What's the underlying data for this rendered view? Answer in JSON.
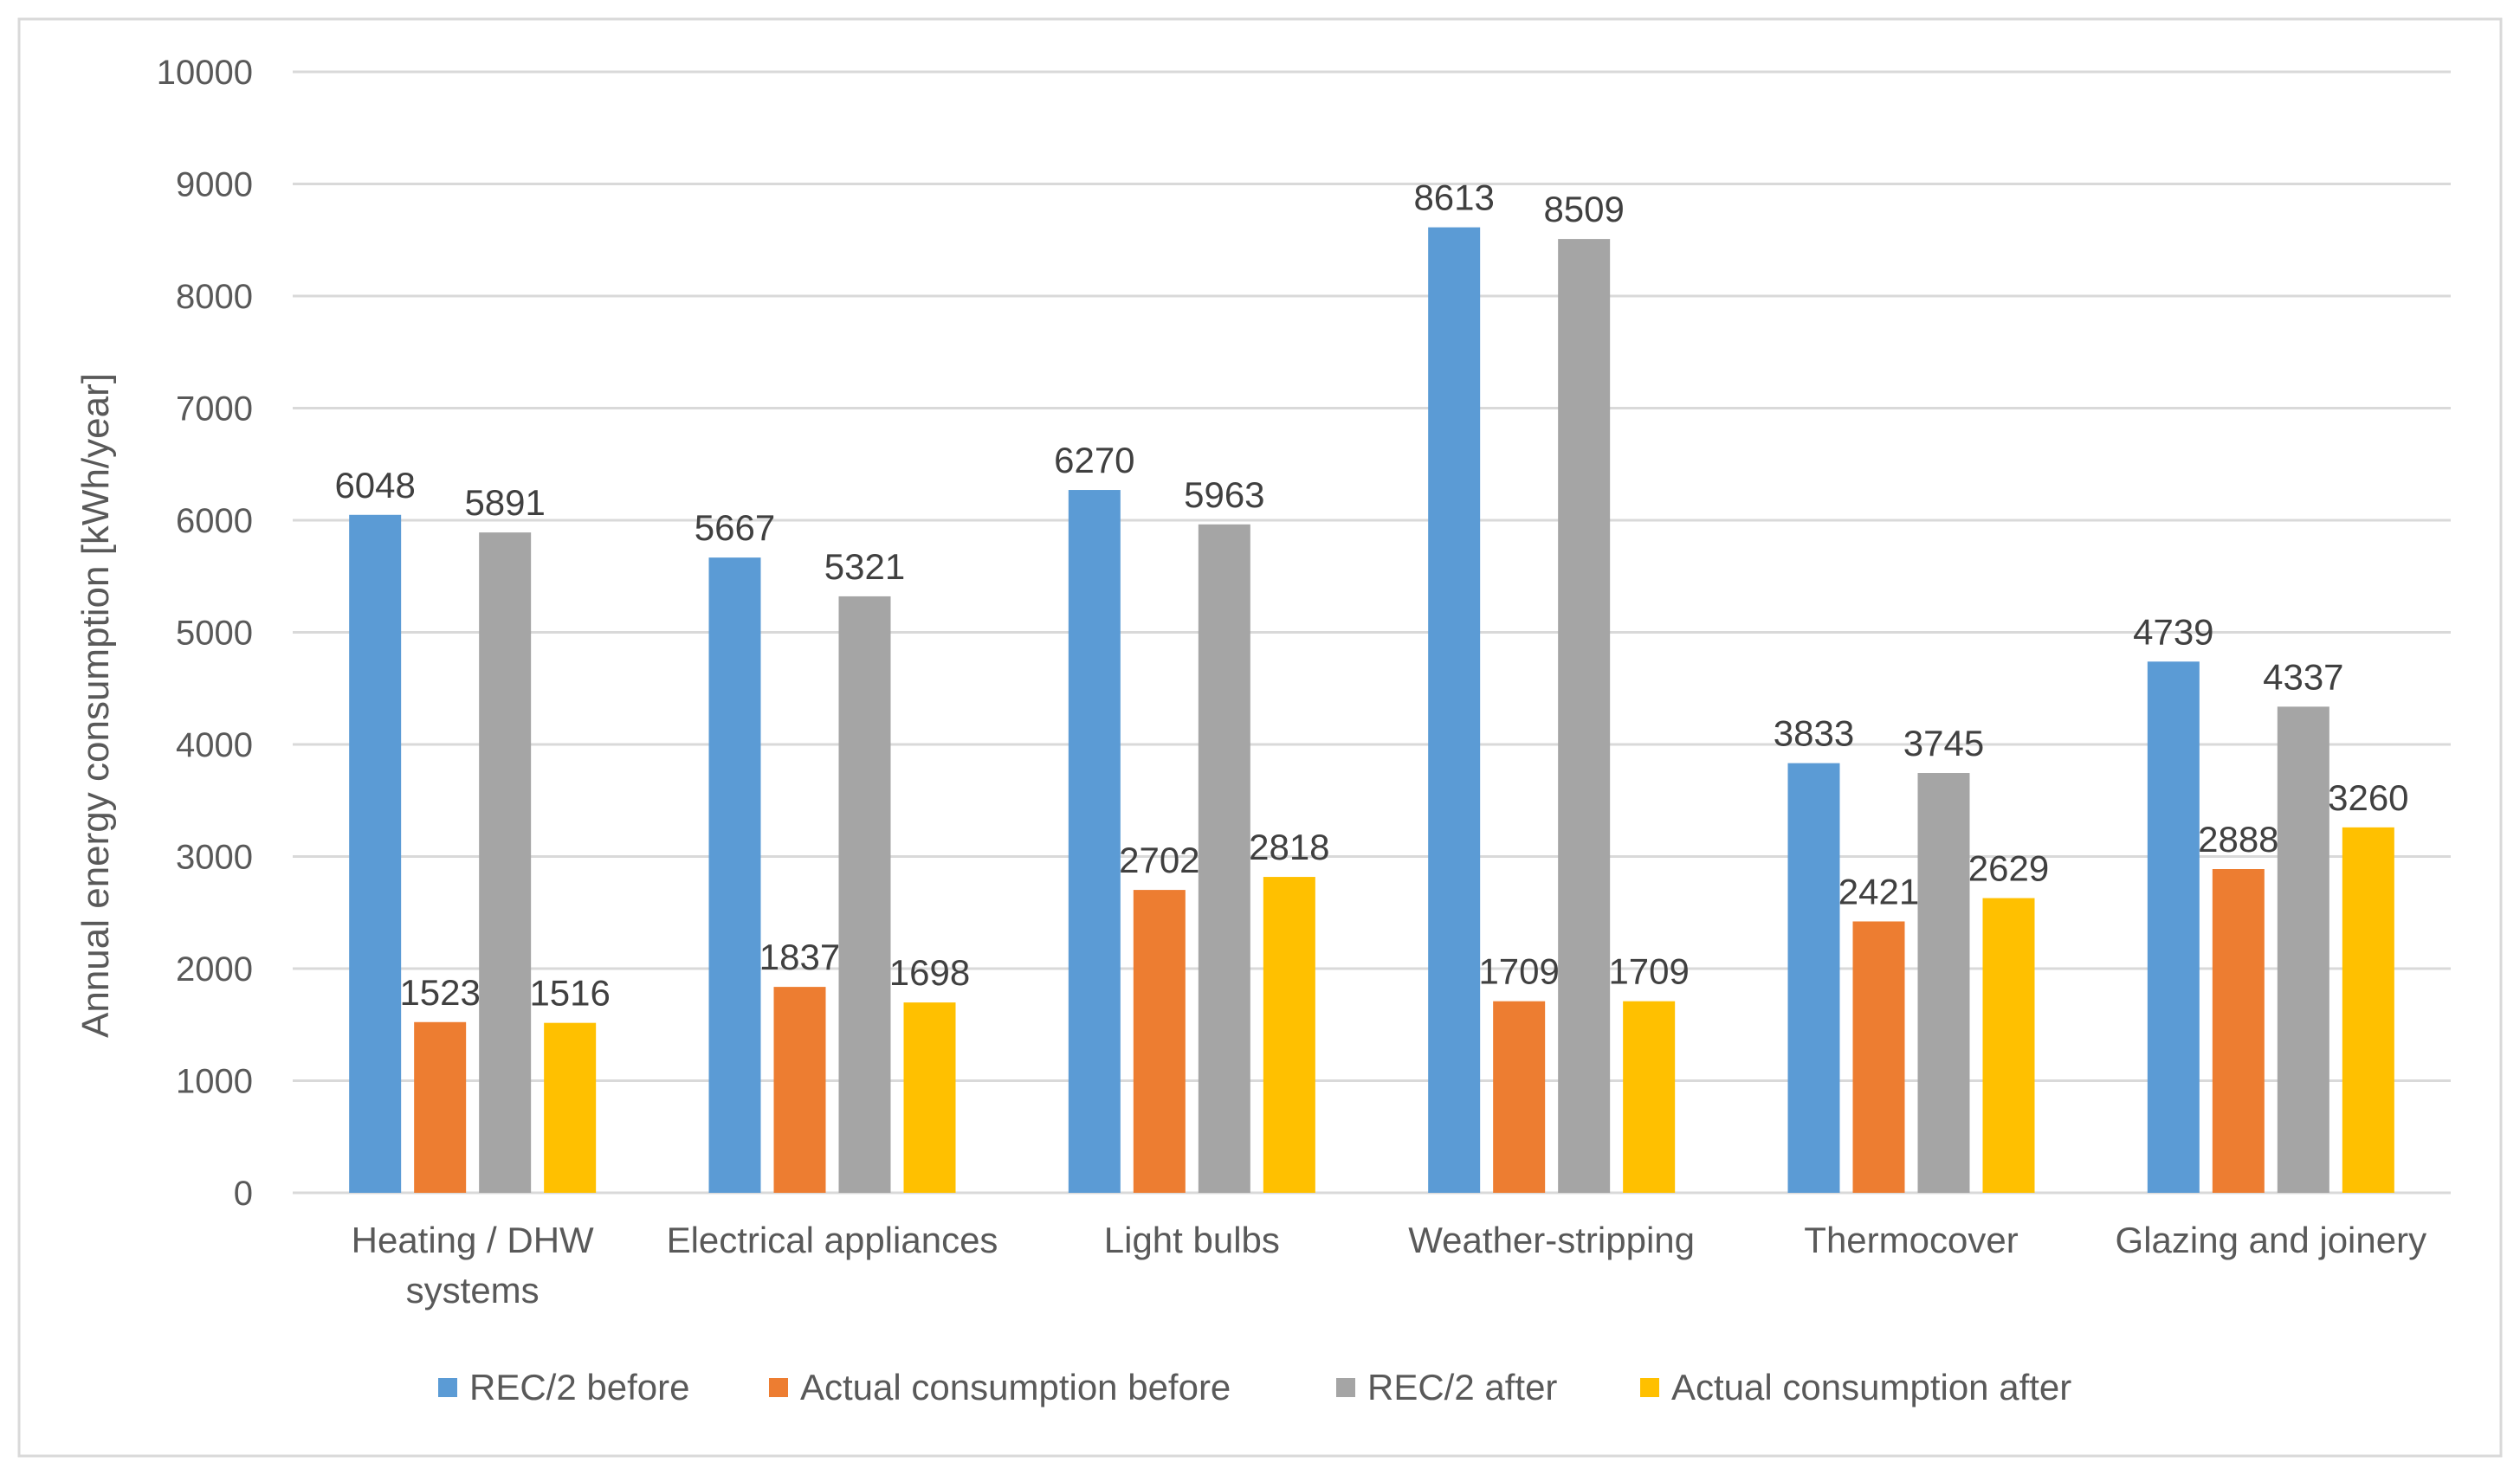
{
  "chart_data": {
    "type": "bar",
    "title": "",
    "xlabel": "",
    "ylabel": "Annual energy consumption [kWh/year]",
    "ylim": [
      0,
      10000
    ],
    "yticks": [
      0,
      1000,
      2000,
      3000,
      4000,
      5000,
      6000,
      7000,
      8000,
      9000,
      10000
    ],
    "grid": true,
    "legend_position": "bottom",
    "categories": [
      [
        "Heating / DHW",
        "systems"
      ],
      [
        "Electrical appliances"
      ],
      [
        "Light bulbs"
      ],
      [
        "Weather-stripping"
      ],
      [
        "Thermocover"
      ],
      [
        "Glazing and joinery"
      ]
    ],
    "series": [
      {
        "name": "REC/2 before",
        "color": "#5b9bd5",
        "values": [
          6048,
          5667,
          6270,
          8613,
          3833,
          4739
        ]
      },
      {
        "name": "Actual consumption before",
        "color": "#ed7d31",
        "values": [
          1523,
          1837,
          2702,
          1709,
          2421,
          2888
        ]
      },
      {
        "name": "REC/2 after",
        "color": "#a5a5a5",
        "values": [
          5891,
          5321,
          5963,
          8509,
          3745,
          4337
        ]
      },
      {
        "name": "Actual consumption after",
        "color": "#ffc000",
        "values": [
          1516,
          1698,
          2818,
          1709,
          2629,
          3260
        ]
      }
    ]
  }
}
